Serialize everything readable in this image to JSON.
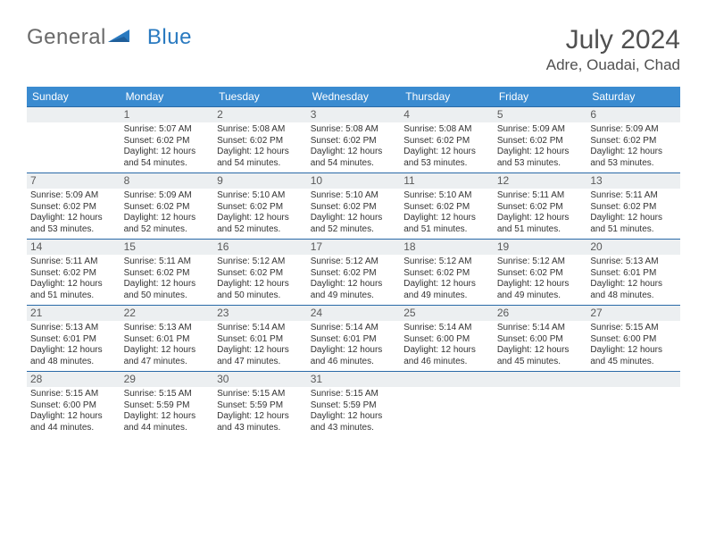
{
  "brand": {
    "part1": "General",
    "part2": "Blue"
  },
  "title": "July 2024",
  "location": "Adre, Ouadai, Chad",
  "colors": {
    "header_bg": "#3a8bd0",
    "header_text": "#ffffff",
    "daynum_bg": "#eceff1",
    "rule": "#2a6aa8",
    "body_text": "#333333"
  },
  "typography": {
    "title_fontsize": 30,
    "location_fontsize": 17,
    "dow_fontsize": 12,
    "cell_fontsize": 10
  },
  "dow": [
    "Sunday",
    "Monday",
    "Tuesday",
    "Wednesday",
    "Thursday",
    "Friday",
    "Saturday"
  ],
  "weeks": [
    [
      {
        "n": "",
        "sr": "",
        "ss": "",
        "dl": ""
      },
      {
        "n": "1",
        "sr": "Sunrise: 5:07 AM",
        "ss": "Sunset: 6:02 PM",
        "dl": "Daylight: 12 hours and 54 minutes."
      },
      {
        "n": "2",
        "sr": "Sunrise: 5:08 AM",
        "ss": "Sunset: 6:02 PM",
        "dl": "Daylight: 12 hours and 54 minutes."
      },
      {
        "n": "3",
        "sr": "Sunrise: 5:08 AM",
        "ss": "Sunset: 6:02 PM",
        "dl": "Daylight: 12 hours and 54 minutes."
      },
      {
        "n": "4",
        "sr": "Sunrise: 5:08 AM",
        "ss": "Sunset: 6:02 PM",
        "dl": "Daylight: 12 hours and 53 minutes."
      },
      {
        "n": "5",
        "sr": "Sunrise: 5:09 AM",
        "ss": "Sunset: 6:02 PM",
        "dl": "Daylight: 12 hours and 53 minutes."
      },
      {
        "n": "6",
        "sr": "Sunrise: 5:09 AM",
        "ss": "Sunset: 6:02 PM",
        "dl": "Daylight: 12 hours and 53 minutes."
      }
    ],
    [
      {
        "n": "7",
        "sr": "Sunrise: 5:09 AM",
        "ss": "Sunset: 6:02 PM",
        "dl": "Daylight: 12 hours and 53 minutes."
      },
      {
        "n": "8",
        "sr": "Sunrise: 5:09 AM",
        "ss": "Sunset: 6:02 PM",
        "dl": "Daylight: 12 hours and 52 minutes."
      },
      {
        "n": "9",
        "sr": "Sunrise: 5:10 AM",
        "ss": "Sunset: 6:02 PM",
        "dl": "Daylight: 12 hours and 52 minutes."
      },
      {
        "n": "10",
        "sr": "Sunrise: 5:10 AM",
        "ss": "Sunset: 6:02 PM",
        "dl": "Daylight: 12 hours and 52 minutes."
      },
      {
        "n": "11",
        "sr": "Sunrise: 5:10 AM",
        "ss": "Sunset: 6:02 PM",
        "dl": "Daylight: 12 hours and 51 minutes."
      },
      {
        "n": "12",
        "sr": "Sunrise: 5:11 AM",
        "ss": "Sunset: 6:02 PM",
        "dl": "Daylight: 12 hours and 51 minutes."
      },
      {
        "n": "13",
        "sr": "Sunrise: 5:11 AM",
        "ss": "Sunset: 6:02 PM",
        "dl": "Daylight: 12 hours and 51 minutes."
      }
    ],
    [
      {
        "n": "14",
        "sr": "Sunrise: 5:11 AM",
        "ss": "Sunset: 6:02 PM",
        "dl": "Daylight: 12 hours and 51 minutes."
      },
      {
        "n": "15",
        "sr": "Sunrise: 5:11 AM",
        "ss": "Sunset: 6:02 PM",
        "dl": "Daylight: 12 hours and 50 minutes."
      },
      {
        "n": "16",
        "sr": "Sunrise: 5:12 AM",
        "ss": "Sunset: 6:02 PM",
        "dl": "Daylight: 12 hours and 50 minutes."
      },
      {
        "n": "17",
        "sr": "Sunrise: 5:12 AM",
        "ss": "Sunset: 6:02 PM",
        "dl": "Daylight: 12 hours and 49 minutes."
      },
      {
        "n": "18",
        "sr": "Sunrise: 5:12 AM",
        "ss": "Sunset: 6:02 PM",
        "dl": "Daylight: 12 hours and 49 minutes."
      },
      {
        "n": "19",
        "sr": "Sunrise: 5:12 AM",
        "ss": "Sunset: 6:02 PM",
        "dl": "Daylight: 12 hours and 49 minutes."
      },
      {
        "n": "20",
        "sr": "Sunrise: 5:13 AM",
        "ss": "Sunset: 6:01 PM",
        "dl": "Daylight: 12 hours and 48 minutes."
      }
    ],
    [
      {
        "n": "21",
        "sr": "Sunrise: 5:13 AM",
        "ss": "Sunset: 6:01 PM",
        "dl": "Daylight: 12 hours and 48 minutes."
      },
      {
        "n": "22",
        "sr": "Sunrise: 5:13 AM",
        "ss": "Sunset: 6:01 PM",
        "dl": "Daylight: 12 hours and 47 minutes."
      },
      {
        "n": "23",
        "sr": "Sunrise: 5:14 AM",
        "ss": "Sunset: 6:01 PM",
        "dl": "Daylight: 12 hours and 47 minutes."
      },
      {
        "n": "24",
        "sr": "Sunrise: 5:14 AM",
        "ss": "Sunset: 6:01 PM",
        "dl": "Daylight: 12 hours and 46 minutes."
      },
      {
        "n": "25",
        "sr": "Sunrise: 5:14 AM",
        "ss": "Sunset: 6:00 PM",
        "dl": "Daylight: 12 hours and 46 minutes."
      },
      {
        "n": "26",
        "sr": "Sunrise: 5:14 AM",
        "ss": "Sunset: 6:00 PM",
        "dl": "Daylight: 12 hours and 45 minutes."
      },
      {
        "n": "27",
        "sr": "Sunrise: 5:15 AM",
        "ss": "Sunset: 6:00 PM",
        "dl": "Daylight: 12 hours and 45 minutes."
      }
    ],
    [
      {
        "n": "28",
        "sr": "Sunrise: 5:15 AM",
        "ss": "Sunset: 6:00 PM",
        "dl": "Daylight: 12 hours and 44 minutes."
      },
      {
        "n": "29",
        "sr": "Sunrise: 5:15 AM",
        "ss": "Sunset: 5:59 PM",
        "dl": "Daylight: 12 hours and 44 minutes."
      },
      {
        "n": "30",
        "sr": "Sunrise: 5:15 AM",
        "ss": "Sunset: 5:59 PM",
        "dl": "Daylight: 12 hours and 43 minutes."
      },
      {
        "n": "31",
        "sr": "Sunrise: 5:15 AM",
        "ss": "Sunset: 5:59 PM",
        "dl": "Daylight: 12 hours and 43 minutes."
      },
      {
        "n": "",
        "sr": "",
        "ss": "",
        "dl": ""
      },
      {
        "n": "",
        "sr": "",
        "ss": "",
        "dl": ""
      },
      {
        "n": "",
        "sr": "",
        "ss": "",
        "dl": ""
      }
    ]
  ]
}
